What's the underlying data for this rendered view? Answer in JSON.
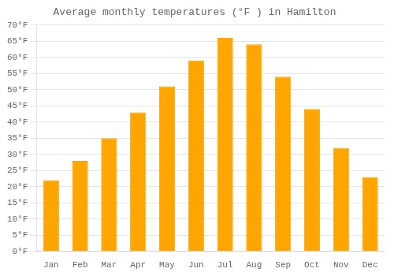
{
  "chart_data": {
    "type": "bar",
    "title": "Average monthly temperatures (°F ) in Hamilton",
    "categories": [
      "Jan",
      "Feb",
      "Mar",
      "Apr",
      "May",
      "Jun",
      "Jul",
      "Aug",
      "Sep",
      "Oct",
      "Nov",
      "Dec"
    ],
    "values": [
      22,
      28,
      35,
      43,
      51,
      59,
      66,
      64,
      54,
      44,
      32,
      23
    ],
    "color": "#FFA500",
    "ylim": [
      0,
      70
    ],
    "yticks": [
      {
        "value": 0,
        "label": "0°F"
      },
      {
        "value": 5,
        "label": "5°F"
      },
      {
        "value": 10,
        "label": "10°F"
      },
      {
        "value": 15,
        "label": "15°F"
      },
      {
        "value": 20,
        "label": "20°F"
      },
      {
        "value": 25,
        "label": "25°F"
      },
      {
        "value": 30,
        "label": "30°F"
      },
      {
        "value": 35,
        "label": "35°F"
      },
      {
        "value": 40,
        "label": "40°F"
      },
      {
        "value": 45,
        "label": "45°F"
      },
      {
        "value": 50,
        "label": "50°F"
      },
      {
        "value": 55,
        "label": "55°F"
      },
      {
        "value": 60,
        "label": "60°F"
      },
      {
        "value": 65,
        "label": "65°F"
      },
      {
        "value": 70,
        "label": "70°F"
      }
    ],
    "grid": true
  }
}
